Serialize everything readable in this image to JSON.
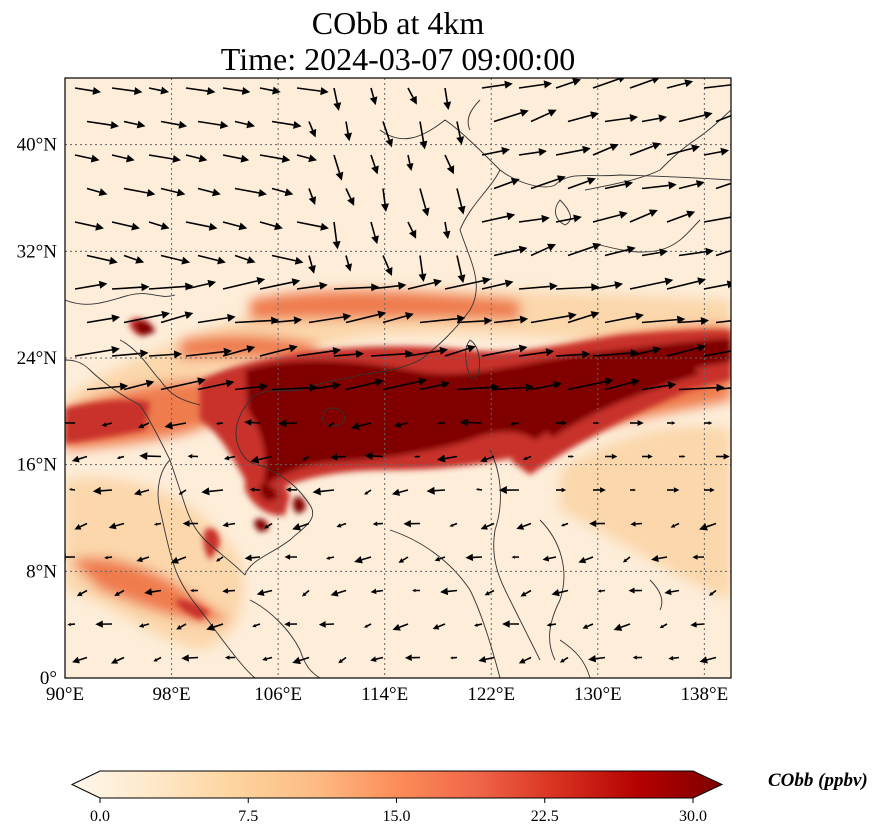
{
  "title": {
    "line1": "CObb at 4km",
    "line2": "Time: 2024-03-07 09:00:00"
  },
  "map": {
    "lon_range": [
      90,
      140
    ],
    "lat_range": [
      0,
      45
    ],
    "x_ticks": [
      {
        "value": 90,
        "label": "90°E"
      },
      {
        "value": 98,
        "label": "98°E"
      },
      {
        "value": 106,
        "label": "106°E"
      },
      {
        "value": 114,
        "label": "114°E"
      },
      {
        "value": 122,
        "label": "122°E"
      },
      {
        "value": 130,
        "label": "130°E"
      },
      {
        "value": 138,
        "label": "138°E"
      }
    ],
    "y_ticks": [
      {
        "value": 0,
        "label": "0°"
      },
      {
        "value": 8,
        "label": "8°N"
      },
      {
        "value": 16,
        "label": "16°N"
      },
      {
        "value": 24,
        "label": "24°N"
      },
      {
        "value": 32,
        "label": "32°N"
      },
      {
        "value": 40,
        "label": "40°N"
      }
    ],
    "grid": true,
    "field_colors": {
      "background": "#fdedd9",
      "light": "#fbd7ab",
      "medium": "#ef7c4d",
      "strong": "#c8302a",
      "max": "#800000"
    },
    "coastline_color": "#333333",
    "vector_color": "#000000"
  },
  "colorbar": {
    "label": "CObb (ppbv)",
    "min": 0,
    "max": 30,
    "ticks": [
      {
        "value": 0,
        "label": "0.0"
      },
      {
        "value": 7.5,
        "label": "7.5"
      },
      {
        "value": 15,
        "label": "15.0"
      },
      {
        "value": 22.5,
        "label": "22.5"
      },
      {
        "value": 30,
        "label": "30.0"
      }
    ],
    "colormap": [
      "#fff7ec",
      "#fee8c8",
      "#fdd49e",
      "#fdbb84",
      "#fc8d59",
      "#ef6548",
      "#d7301f",
      "#b30000",
      "#7f0000"
    ]
  }
}
